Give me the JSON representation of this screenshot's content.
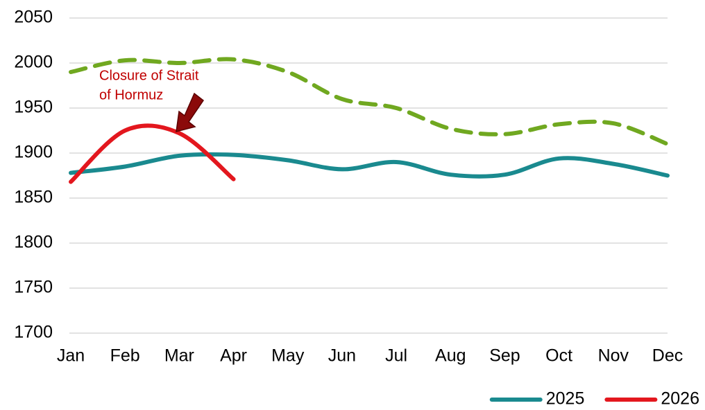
{
  "chart_data": {
    "type": "line",
    "categories": [
      "Jan",
      "Feb",
      "Mar",
      "Apr",
      "May",
      "Jun",
      "Jul",
      "Aug",
      "Sep",
      "Oct",
      "Nov",
      "Dec"
    ],
    "series": [
      {
        "color": "#70a820",
        "dashed": true,
        "values": [
          1990,
          2003,
          2000,
          2004,
          1990,
          1960,
          1950,
          1927,
          1921,
          1932,
          1933,
          1910
        ]
      },
      {
        "name": "2025",
        "color": "#1a8a8f",
        "values": [
          1878,
          1885,
          1897,
          1898,
          1892,
          1882,
          1890,
          1876,
          1876,
          1894,
          1888,
          1875
        ]
      },
      {
        "name": "2026",
        "color": "#e3171e",
        "values": [
          1868,
          1925,
          1922,
          1871,
          null,
          null,
          null,
          null,
          null,
          null,
          null,
          null
        ]
      }
    ],
    "annotation": [
      "Closure of Strait",
      "of Hormuz"
    ],
    "ylim": [
      1700,
      2050
    ],
    "yticks": [
      1700,
      1750,
      1800,
      1850,
      1900,
      1950,
      2000,
      2050
    ],
    "grid": true,
    "legend": "bottom-right"
  }
}
